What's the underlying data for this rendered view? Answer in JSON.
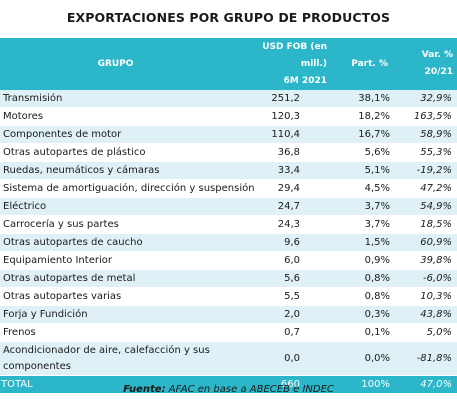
{
  "title": "EXPORTACIONES POR GRUPO DE PRODUCTOS",
  "header": {
    "grupo": "GRUPO",
    "usd_line1": "USD FOB (en mill.)",
    "usd_line2": "6M 2021",
    "part": "Part. %",
    "var_line1": "Var. %",
    "var_line2": "20/21"
  },
  "rows": [
    {
      "grupo": "Transmisión",
      "usd": "251,2",
      "part": "38,1%",
      "var": "32,9%"
    },
    {
      "grupo": "Motores",
      "usd": "120,3",
      "part": "18,2%",
      "var": "163,5%"
    },
    {
      "grupo": "Componentes de motor",
      "usd": "110,4",
      "part": "16,7%",
      "var": "58,9%"
    },
    {
      "grupo": "Otras autopartes de plástico",
      "usd": "36,8",
      "part": "5,6%",
      "var": "55,3%"
    },
    {
      "grupo": "Ruedas, neumáticos y cámaras",
      "usd": "33,4",
      "part": "5,1%",
      "var": "-19,2%"
    },
    {
      "grupo": "Sistema de amortiguación, dirección y suspensión",
      "usd": "29,4",
      "part": "4,5%",
      "var": "47,2%"
    },
    {
      "grupo": "Eléctrico",
      "usd": "24,7",
      "part": "3,7%",
      "var": "54,9%"
    },
    {
      "grupo": "Carrocería y sus partes",
      "usd": "24,3",
      "part": "3,7%",
      "var": "18,5%"
    },
    {
      "grupo": "Otras autopartes de caucho",
      "usd": "9,6",
      "part": "1,5%",
      "var": "60,9%"
    },
    {
      "grupo": "Equipamiento Interior",
      "usd": "6,0",
      "part": "0,9%",
      "var": "39,8%"
    },
    {
      "grupo": "Otras autopartes de metal",
      "usd": "5,6",
      "part": "0,8%",
      "var": "-6,0%"
    },
    {
      "grupo": "Otras autopartes varias",
      "usd": "5,5",
      "part": "0,8%",
      "var": "10,3%"
    },
    {
      "grupo": "Forja y Fundición",
      "usd": "2,0",
      "part": "0,3%",
      "var": "43,8%"
    },
    {
      "grupo": "Frenos",
      "usd": "0,7",
      "part": "0,1%",
      "var": "5,0%"
    },
    {
      "grupo": "Acondicionador de aire, calefacción y sus componentes",
      "usd": "0,0",
      "part": "0,0%",
      "var": "-81,8%"
    }
  ],
  "total": {
    "grupo": "TOTAL",
    "usd": "660",
    "part": "100%",
    "var": "47,0%"
  },
  "source": {
    "label": "Fuente:",
    "text": " AFAC en base a ABECEB e INDEC"
  },
  "colors": {
    "header_bg": "#2bb7c9",
    "stripe_bg": "#dff1f6"
  }
}
